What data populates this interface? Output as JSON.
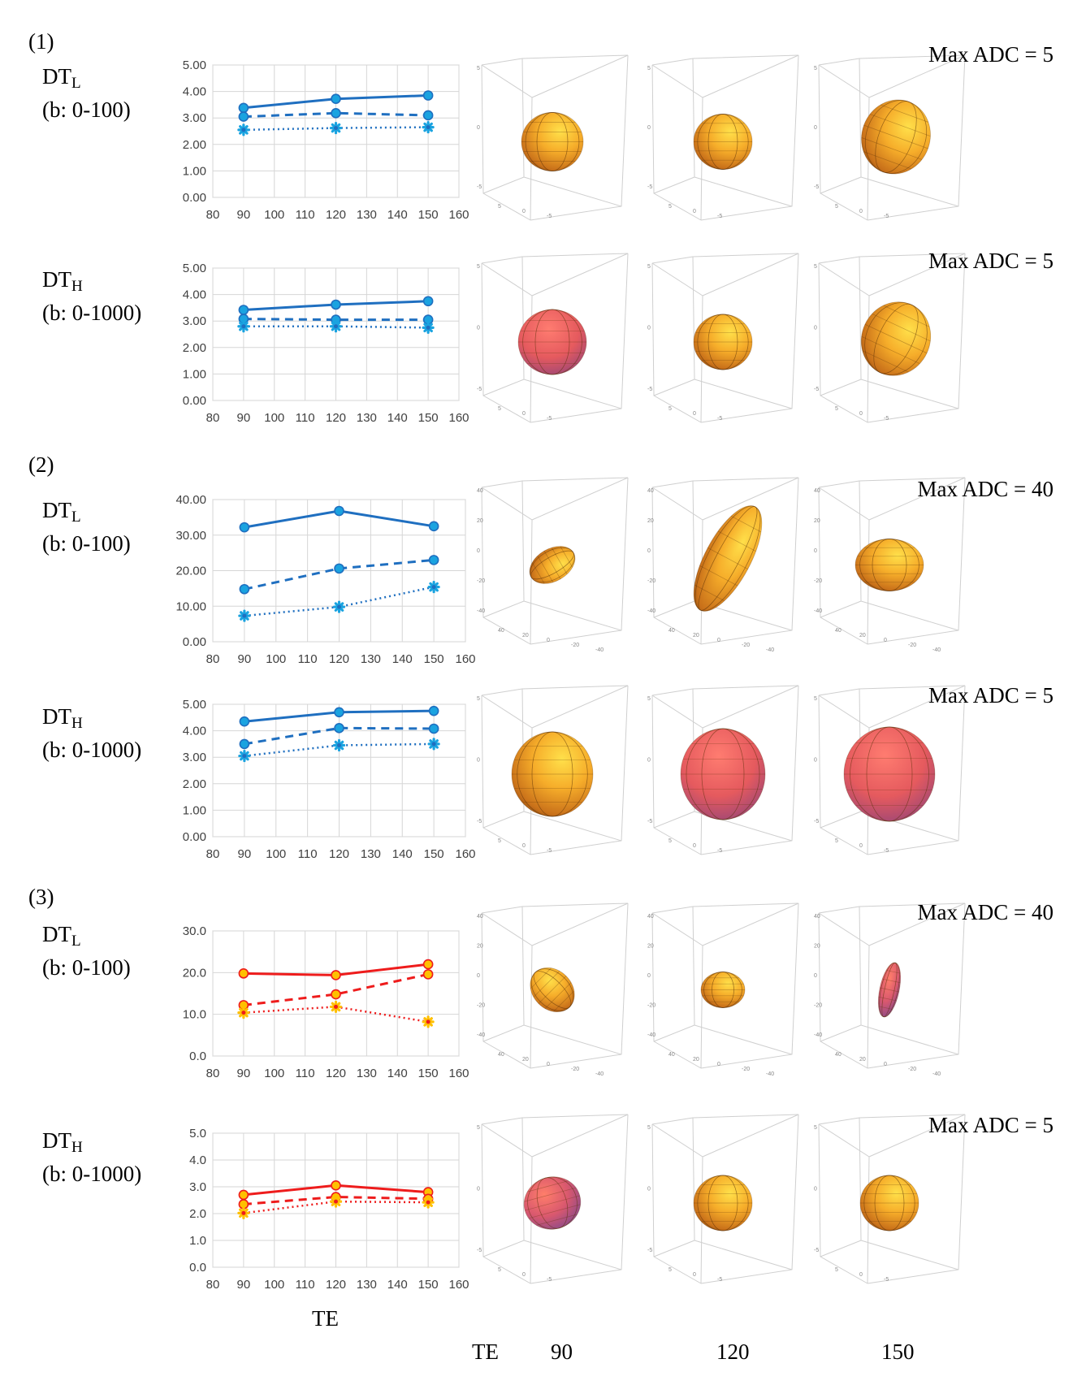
{
  "sections": [
    {
      "label": "(1)"
    },
    {
      "label": "(2)"
    },
    {
      "label": "(3)"
    }
  ],
  "rows": [
    {
      "name_main": "DT",
      "name_sub": "L",
      "b_label": "(b: 0-100)",
      "max_adc": "Max ADC = 5",
      "colors": [
        "#f6b52c",
        "#f6b52c",
        "#f6b52c"
      ]
    },
    {
      "name_main": "DT",
      "name_sub": "H",
      "b_label": "(b: 0-1000)",
      "max_adc": "Max ADC = 5",
      "colors": [
        "#e86060",
        "#f6b52c",
        "#f6b52c"
      ]
    },
    {
      "name_main": "DT",
      "name_sub": "L",
      "b_label": "(b: 0-100)",
      "max_adc": "Max ADC = 40",
      "colors": [
        "#f6b52c",
        "#f6b52c",
        "#f6b52c"
      ]
    },
    {
      "name_main": "DT",
      "name_sub": "H",
      "b_label": "(b: 0-1000)",
      "max_adc": "Max ADC = 5",
      "colors": [
        "#f6b52c",
        "#e86060",
        "#e86060"
      ]
    },
    {
      "name_main": "DT",
      "name_sub": "L",
      "b_label": "(b: 0-100)",
      "max_adc": "Max ADC = 40",
      "colors": [
        "#f6b52c",
        "#f6b52c",
        "#d86080"
      ]
    },
    {
      "name_main": "DT",
      "name_sub": "H",
      "b_label": "(b: 0-1000)",
      "max_adc": "Max ADC = 5",
      "colors": [
        "#d86080",
        "#f6b52c",
        "#f6b52c"
      ]
    }
  ],
  "glyph_axis_ticks": {
    "small": [
      "5",
      "0",
      "-5"
    ],
    "large": [
      "40",
      "20",
      "0",
      "-20",
      "-40"
    ]
  },
  "bottom": {
    "x_title": "TE",
    "te_label": "TE",
    "te_values": [
      "90",
      "120",
      "150"
    ]
  },
  "chart_data": [
    {
      "type": "line",
      "title": "",
      "xlabel": "",
      "ylabel": "",
      "x": [
        90,
        120,
        150
      ],
      "xlim": [
        80,
        160
      ],
      "xticks": [
        "80",
        "90",
        "100",
        "110",
        "120",
        "130",
        "140",
        "150",
        "160"
      ],
      "ylim": [
        0,
        5
      ],
      "yticks": [
        "0.00",
        "1.00",
        "2.00",
        "3.00",
        "4.00",
        "5.00"
      ],
      "line_color": "#1f6fc0",
      "marker_color": "#1aa3e0",
      "series": [
        {
          "name": "solid",
          "values": [
            3.38,
            3.72,
            3.85
          ]
        },
        {
          "name": "dashed",
          "values": [
            3.05,
            3.18,
            3.1
          ]
        },
        {
          "name": "dotted",
          "values": [
            2.55,
            2.62,
            2.65
          ]
        }
      ]
    },
    {
      "type": "line",
      "title": "",
      "xlabel": "",
      "ylabel": "",
      "x": [
        90,
        120,
        150
      ],
      "xlim": [
        80,
        160
      ],
      "xticks": [
        "80",
        "90",
        "100",
        "110",
        "120",
        "130",
        "140",
        "150",
        "160"
      ],
      "ylim": [
        0,
        5
      ],
      "yticks": [
        "0.00",
        "1.00",
        "2.00",
        "3.00",
        "4.00",
        "5.00"
      ],
      "line_color": "#1f6fc0",
      "marker_color": "#1aa3e0",
      "series": [
        {
          "name": "solid",
          "values": [
            3.42,
            3.62,
            3.75
          ]
        },
        {
          "name": "dashed",
          "values": [
            3.08,
            3.05,
            3.05
          ]
        },
        {
          "name": "dotted",
          "values": [
            2.8,
            2.8,
            2.75
          ]
        }
      ]
    },
    {
      "type": "line",
      "title": "",
      "xlabel": "",
      "ylabel": "",
      "x": [
        90,
        120,
        150
      ],
      "xlim": [
        80,
        160
      ],
      "xticks": [
        "80",
        "90",
        "100",
        "110",
        "120",
        "130",
        "140",
        "150",
        "160"
      ],
      "ylim": [
        0,
        40
      ],
      "yticks": [
        "0.00",
        "10.00",
        "20.00",
        "30.00",
        "40.00"
      ],
      "line_color": "#1f6fc0",
      "marker_color": "#1aa3e0",
      "series": [
        {
          "name": "solid",
          "values": [
            32.2,
            36.8,
            32.5
          ]
        },
        {
          "name": "dashed",
          "values": [
            14.8,
            20.6,
            23.0
          ]
        },
        {
          "name": "dotted",
          "values": [
            7.3,
            9.8,
            15.4
          ]
        }
      ]
    },
    {
      "type": "line",
      "title": "",
      "xlabel": "",
      "ylabel": "",
      "x": [
        90,
        120,
        150
      ],
      "xlim": [
        80,
        160
      ],
      "xticks": [
        "80",
        "90",
        "100",
        "110",
        "120",
        "130",
        "140",
        "150",
        "160"
      ],
      "ylim": [
        0,
        5
      ],
      "yticks": [
        "0.00",
        "1.00",
        "2.00",
        "3.00",
        "4.00",
        "5.00"
      ],
      "line_color": "#1f6fc0",
      "marker_color": "#1aa3e0",
      "series": [
        {
          "name": "solid",
          "values": [
            4.35,
            4.7,
            4.75
          ]
        },
        {
          "name": "dashed",
          "values": [
            3.5,
            4.1,
            4.08
          ]
        },
        {
          "name": "dotted",
          "values": [
            3.05,
            3.45,
            3.5
          ]
        }
      ]
    },
    {
      "type": "line",
      "title": "",
      "xlabel": "",
      "ylabel": "",
      "x": [
        90,
        120,
        150
      ],
      "xlim": [
        80,
        160
      ],
      "xticks": [
        "80",
        "90",
        "100",
        "110",
        "120",
        "130",
        "140",
        "150",
        "160"
      ],
      "ylim": [
        0,
        30
      ],
      "yticks": [
        "0.0",
        "10.0",
        "20.0",
        "30.0"
      ],
      "line_color": "#ee1c1c",
      "marker_color": "#ffc000",
      "series": [
        {
          "name": "solid",
          "values": [
            19.8,
            19.4,
            22.0
          ]
        },
        {
          "name": "dashed",
          "values": [
            12.2,
            14.8,
            19.6
          ]
        },
        {
          "name": "dotted",
          "values": [
            10.4,
            11.8,
            8.2
          ]
        }
      ]
    },
    {
      "type": "line",
      "title": "",
      "xlabel": "",
      "ylabel": "",
      "x": [
        90,
        120,
        150
      ],
      "xlim": [
        80,
        160
      ],
      "xticks": [
        "80",
        "90",
        "100",
        "110",
        "120",
        "130",
        "140",
        "150",
        "160"
      ],
      "ylim": [
        0,
        5
      ],
      "yticks": [
        "0.0",
        "1.0",
        "2.0",
        "3.0",
        "4.0",
        "5.0"
      ],
      "line_color": "#ee1c1c",
      "marker_color": "#ffc000",
      "series": [
        {
          "name": "solid",
          "values": [
            2.7,
            3.05,
            2.8
          ]
        },
        {
          "name": "dashed",
          "values": [
            2.35,
            2.62,
            2.55
          ]
        },
        {
          "name": "dotted",
          "values": [
            2.02,
            2.45,
            2.42
          ]
        }
      ]
    }
  ]
}
